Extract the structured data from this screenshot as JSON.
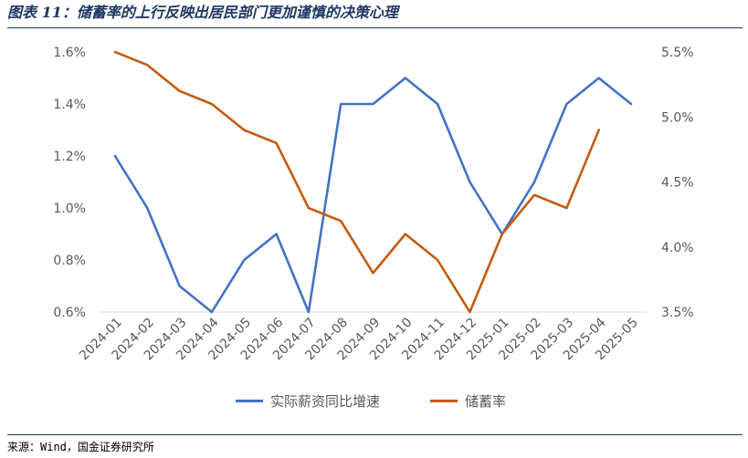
{
  "title": "图表 11：储蓄率的上行反映出居民部门更加谨慎的决策心理",
  "source": "来源：Wind，国金证券研究所",
  "colors": {
    "blue": "#4472c4",
    "orange": "#c55a11",
    "axis_text": "#595959",
    "title": "#1f3864"
  },
  "chart_data": {
    "type": "line",
    "categories": [
      "2024-01",
      "2024-02",
      "2024-03",
      "2024-04",
      "2024-05",
      "2024-06",
      "2024-07",
      "2024-08",
      "2024-09",
      "2024-10",
      "2024-11",
      "2024-12",
      "2025-01",
      "2025-02",
      "2025-03",
      "2025-04",
      "2025-05"
    ],
    "left_axis": {
      "min": 0.6,
      "max": 1.6,
      "ticks": [
        "0.6%",
        "0.8%",
        "1.0%",
        "1.2%",
        "1.4%",
        "1.6%"
      ]
    },
    "right_axis": {
      "min": 3.5,
      "max": 5.5,
      "ticks": [
        "3.5%",
        "4.0%",
        "4.5%",
        "5.0%",
        "5.5%"
      ]
    },
    "series": [
      {
        "name": "实际薪资同比增速",
        "axis": "left",
        "color": "#4472c4",
        "values": [
          1.2,
          1.0,
          0.7,
          0.6,
          0.8,
          0.9,
          0.6,
          1.4,
          1.4,
          1.5,
          1.4,
          1.1,
          0.9,
          1.1,
          1.4,
          1.5,
          1.4
        ]
      },
      {
        "name": "储蓄率",
        "axis": "right",
        "color": "#c55a11",
        "values": [
          5.5,
          5.4,
          5.2,
          5.1,
          4.9,
          4.8,
          4.3,
          4.2,
          3.8,
          4.1,
          3.9,
          3.5,
          4.1,
          4.4,
          4.3,
          4.9,
          null
        ]
      }
    ],
    "grid": false,
    "legend_position": "bottom"
  }
}
